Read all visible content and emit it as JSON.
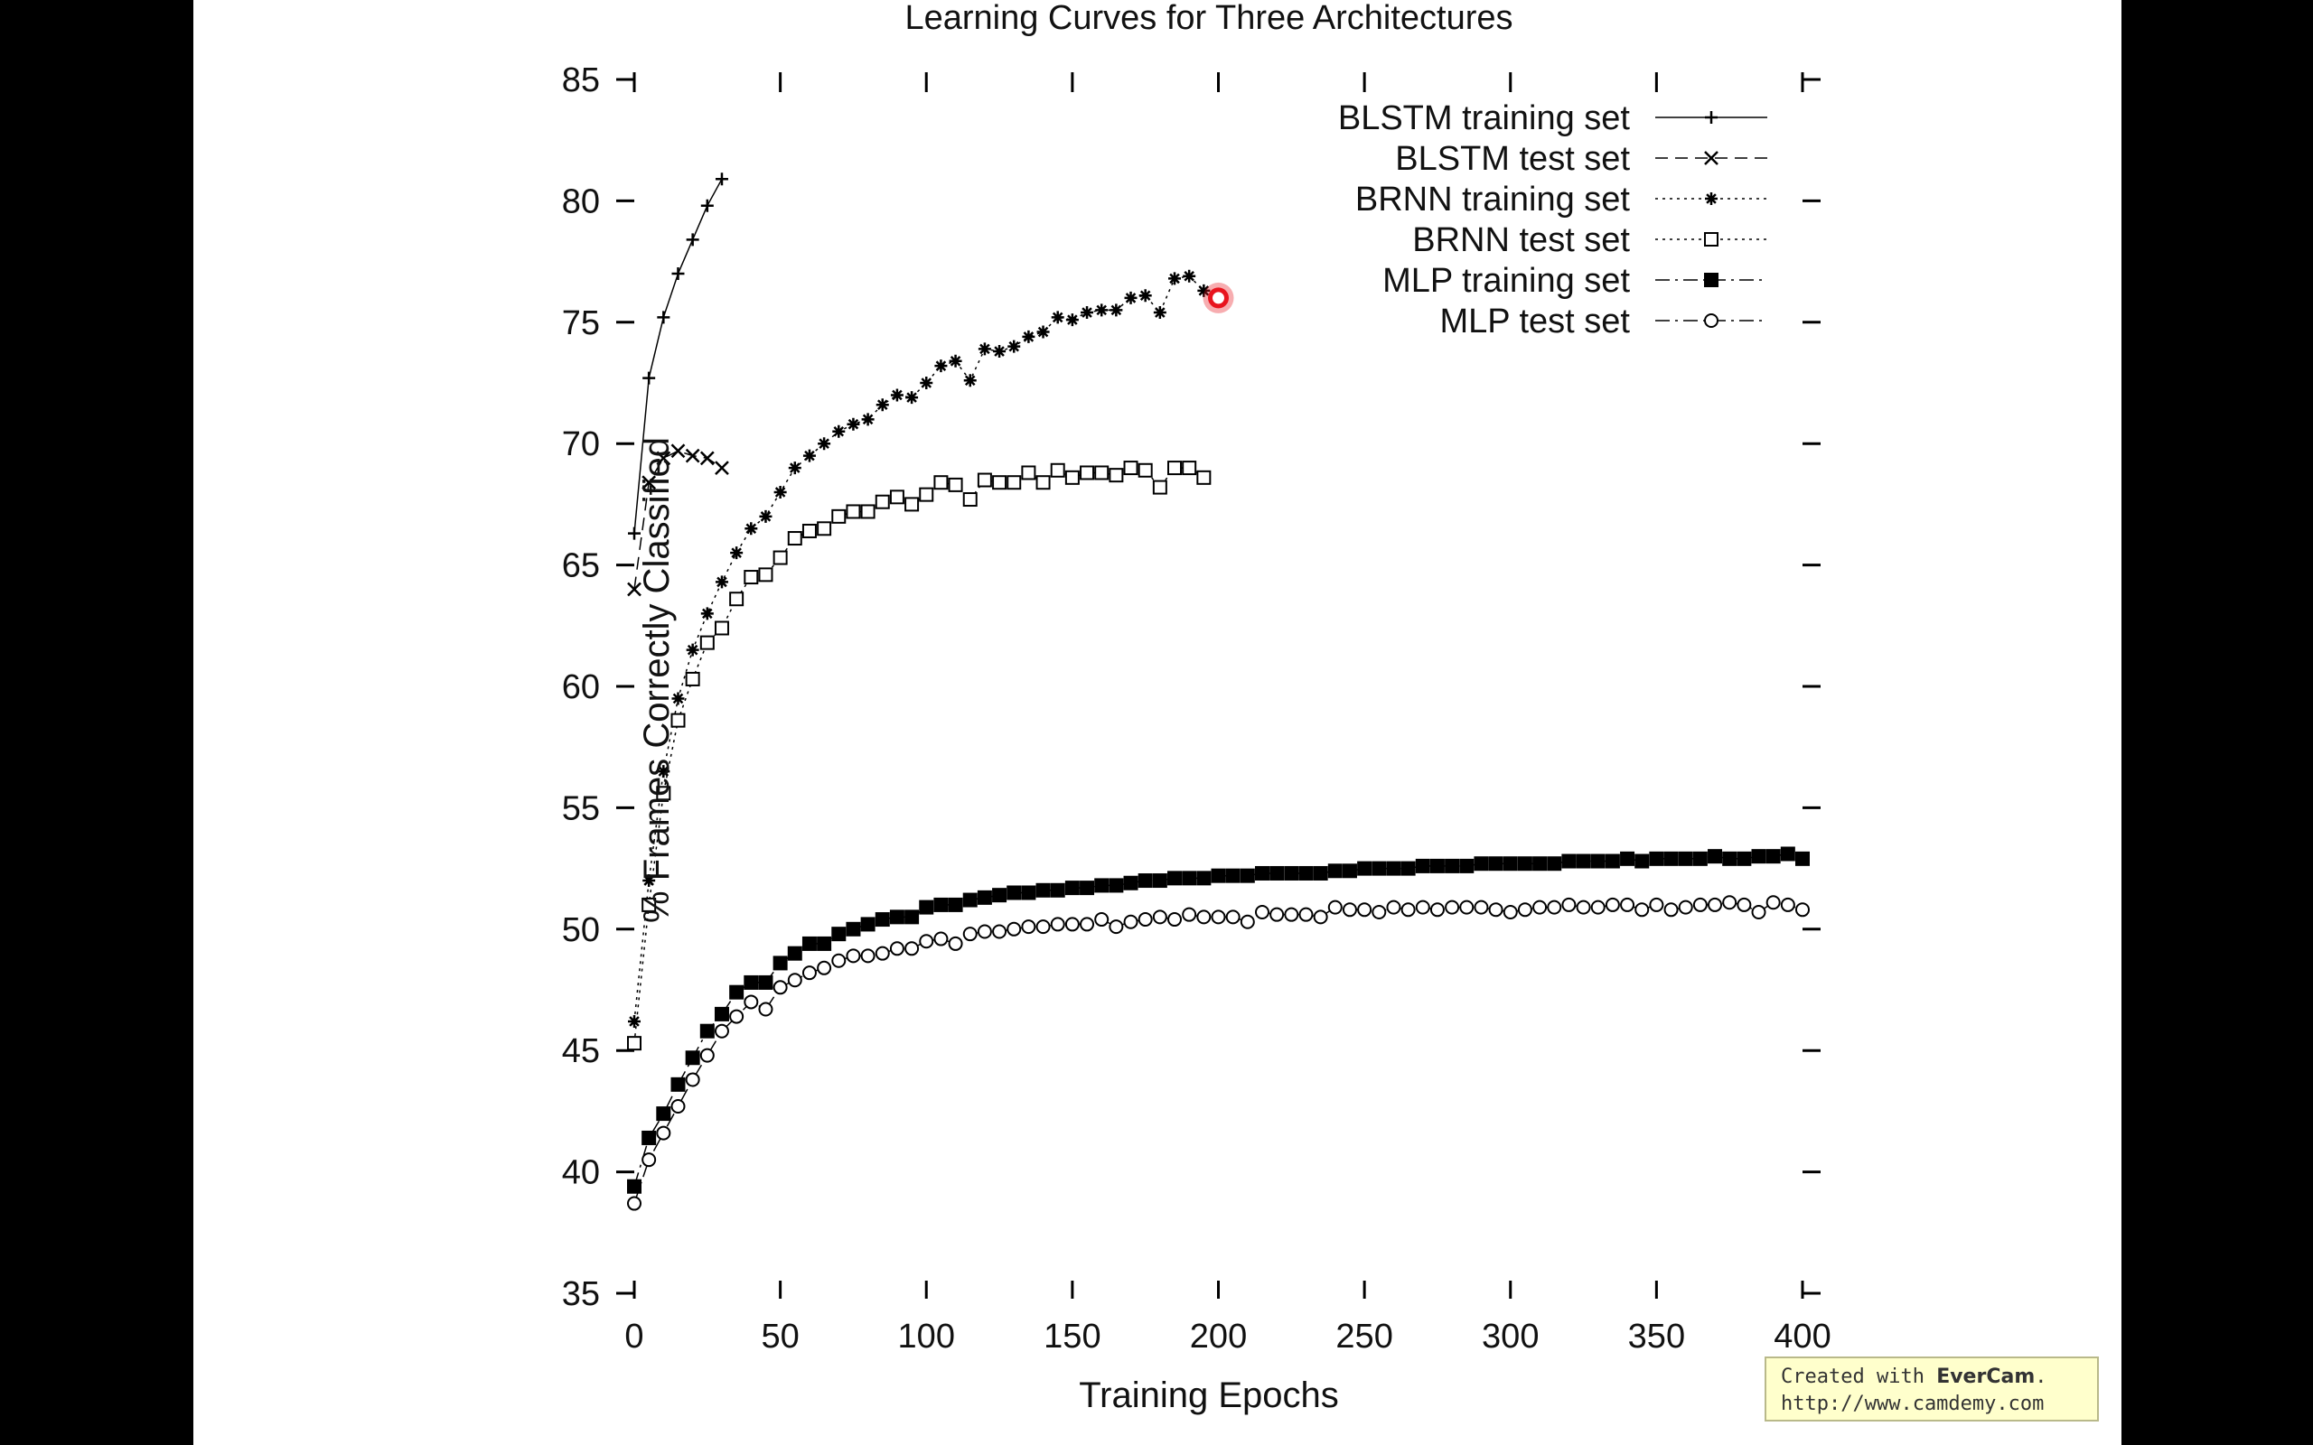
{
  "chart_data": {
    "type": "line",
    "title": "Learning Curves for Three Architectures",
    "xlabel": "Training Epochs",
    "ylabel": "% Frames Correctly Classified",
    "xlim": [
      0,
      400
    ],
    "ylim": [
      35,
      85
    ],
    "xticks": [
      0,
      50,
      100,
      150,
      200,
      250,
      300,
      350,
      400
    ],
    "yticks": [
      35,
      40,
      45,
      50,
      55,
      60,
      65,
      70,
      75,
      80,
      85
    ],
    "grid": false,
    "legend_position": "top-right",
    "series": [
      {
        "name": "BLSTM training set",
        "marker": "plus",
        "line": "solid",
        "x": [
          0,
          5,
          10,
          15,
          20,
          25,
          30
        ],
        "y": [
          66.3,
          72.7,
          75.2,
          77.0,
          78.4,
          79.8,
          80.9
        ]
      },
      {
        "name": "BLSTM test set",
        "marker": "cross",
        "line": "dashed",
        "x": [
          0,
          5,
          10,
          15,
          20,
          25,
          30
        ],
        "y": [
          64.0,
          68.4,
          69.4,
          69.7,
          69.5,
          69.4,
          69.0
        ]
      },
      {
        "name": "BRNN training set",
        "marker": "star",
        "line": "dotted",
        "x": [
          0,
          5,
          10,
          15,
          20,
          25,
          30,
          35,
          40,
          45,
          50,
          55,
          60,
          65,
          70,
          75,
          80,
          85,
          90,
          95,
          100,
          105,
          110,
          115,
          120,
          125,
          130,
          135,
          140,
          145,
          150,
          155,
          160,
          165,
          170,
          175,
          180,
          185,
          190,
          195
        ],
        "y": [
          46.2,
          52.0,
          56.5,
          59.5,
          61.5,
          63.0,
          64.3,
          65.5,
          66.5,
          67.0,
          68.0,
          69.0,
          69.5,
          70.0,
          70.5,
          70.8,
          71.0,
          71.6,
          72.0,
          71.9,
          72.5,
          73.2,
          73.4,
          72.6,
          73.9,
          73.8,
          74.0,
          74.4,
          74.6,
          75.2,
          75.1,
          75.4,
          75.5,
          75.5,
          76.0,
          76.1,
          75.4,
          76.8,
          76.9,
          76.3
        ]
      },
      {
        "name": "BRNN test set",
        "marker": "square",
        "line": "dotted",
        "x": [
          0,
          5,
          10,
          15,
          20,
          25,
          30,
          35,
          40,
          45,
          50,
          55,
          60,
          65,
          70,
          75,
          80,
          85,
          90,
          95,
          100,
          105,
          110,
          115,
          120,
          125,
          130,
          135,
          140,
          145,
          150,
          155,
          160,
          165,
          170,
          175,
          180,
          185,
          190,
          195
        ],
        "y": [
          45.3,
          51.0,
          55.6,
          58.6,
          60.3,
          61.8,
          62.4,
          63.6,
          64.5,
          64.6,
          65.3,
          66.1,
          66.4,
          66.5,
          67.0,
          67.2,
          67.2,
          67.6,
          67.8,
          67.5,
          67.9,
          68.4,
          68.3,
          67.7,
          68.5,
          68.4,
          68.4,
          68.8,
          68.4,
          68.9,
          68.6,
          68.8,
          68.8,
          68.7,
          69.0,
          68.9,
          68.2,
          69.0,
          69.0,
          68.6
        ]
      },
      {
        "name": "MLP training set",
        "marker": "filled-square",
        "line": "dash-dot",
        "x": [
          0,
          5,
          10,
          15,
          20,
          25,
          30,
          35,
          40,
          45,
          50,
          55,
          60,
          65,
          70,
          75,
          80,
          85,
          90,
          95,
          100,
          105,
          110,
          115,
          120,
          125,
          130,
          135,
          140,
          145,
          150,
          155,
          160,
          165,
          170,
          175,
          180,
          185,
          190,
          195,
          200,
          205,
          210,
          215,
          220,
          225,
          230,
          235,
          240,
          245,
          250,
          255,
          260,
          265,
          270,
          275,
          280,
          285,
          290,
          295,
          300,
          305,
          310,
          315,
          320,
          325,
          330,
          335,
          340,
          345,
          350,
          355,
          360,
          365,
          370,
          375,
          380,
          385,
          390,
          395,
          400
        ],
        "y": [
          39.4,
          41.4,
          42.4,
          43.6,
          44.7,
          45.8,
          46.5,
          47.4,
          47.8,
          47.8,
          48.6,
          49.0,
          49.4,
          49.4,
          49.8,
          50.0,
          50.2,
          50.4,
          50.5,
          50.5,
          50.9,
          51.0,
          51.0,
          51.2,
          51.3,
          51.4,
          51.5,
          51.5,
          51.6,
          51.6,
          51.7,
          51.7,
          51.8,
          51.8,
          51.9,
          52.0,
          52.0,
          52.1,
          52.1,
          52.1,
          52.2,
          52.2,
          52.2,
          52.3,
          52.3,
          52.3,
          52.3,
          52.3,
          52.4,
          52.4,
          52.5,
          52.5,
          52.5,
          52.5,
          52.6,
          52.6,
          52.6,
          52.6,
          52.7,
          52.7,
          52.7,
          52.7,
          52.7,
          52.7,
          52.8,
          52.8,
          52.8,
          52.8,
          52.9,
          52.8,
          52.9,
          52.9,
          52.9,
          52.9,
          53.0,
          52.9,
          52.9,
          53.0,
          53.0,
          53.1,
          52.9
        ]
      },
      {
        "name": "MLP test set",
        "marker": "circle",
        "line": "dash-dot",
        "x": [
          0,
          5,
          10,
          15,
          20,
          25,
          30,
          35,
          40,
          45,
          50,
          55,
          60,
          65,
          70,
          75,
          80,
          85,
          90,
          95,
          100,
          105,
          110,
          115,
          120,
          125,
          130,
          135,
          140,
          145,
          150,
          155,
          160,
          165,
          170,
          175,
          180,
          185,
          190,
          195,
          200,
          205,
          210,
          215,
          220,
          225,
          230,
          235,
          240,
          245,
          250,
          255,
          260,
          265,
          270,
          275,
          280,
          285,
          290,
          295,
          300,
          305,
          310,
          315,
          320,
          325,
          330,
          335,
          340,
          345,
          350,
          355,
          360,
          365,
          370,
          375,
          380,
          385,
          390,
          395,
          400
        ],
        "y": [
          38.7,
          40.5,
          41.6,
          42.7,
          43.8,
          44.8,
          45.8,
          46.4,
          47.0,
          46.7,
          47.6,
          47.9,
          48.2,
          48.4,
          48.7,
          48.9,
          48.9,
          49.0,
          49.2,
          49.2,
          49.5,
          49.6,
          49.4,
          49.8,
          49.9,
          49.9,
          50.0,
          50.1,
          50.1,
          50.2,
          50.2,
          50.2,
          50.4,
          50.1,
          50.3,
          50.4,
          50.5,
          50.4,
          50.6,
          50.5,
          50.5,
          50.5,
          50.3,
          50.7,
          50.6,
          50.6,
          50.6,
          50.5,
          50.9,
          50.8,
          50.8,
          50.7,
          50.9,
          50.8,
          50.9,
          50.8,
          50.9,
          50.9,
          50.9,
          50.8,
          50.7,
          50.8,
          50.9,
          50.9,
          51.0,
          50.9,
          50.9,
          51.0,
          51.0,
          50.8,
          51.0,
          50.8,
          50.9,
          51.0,
          51.0,
          51.1,
          51.0,
          50.7,
          51.1,
          51.0,
          50.8
        ]
      }
    ],
    "highlight": {
      "x": 200,
      "y": 76.0,
      "color": "#e8141e"
    }
  },
  "watermark": {
    "prefix": "Created with ",
    "brand": "EverCam",
    "suffix": ".",
    "url": "http://www.camdemy.com"
  }
}
